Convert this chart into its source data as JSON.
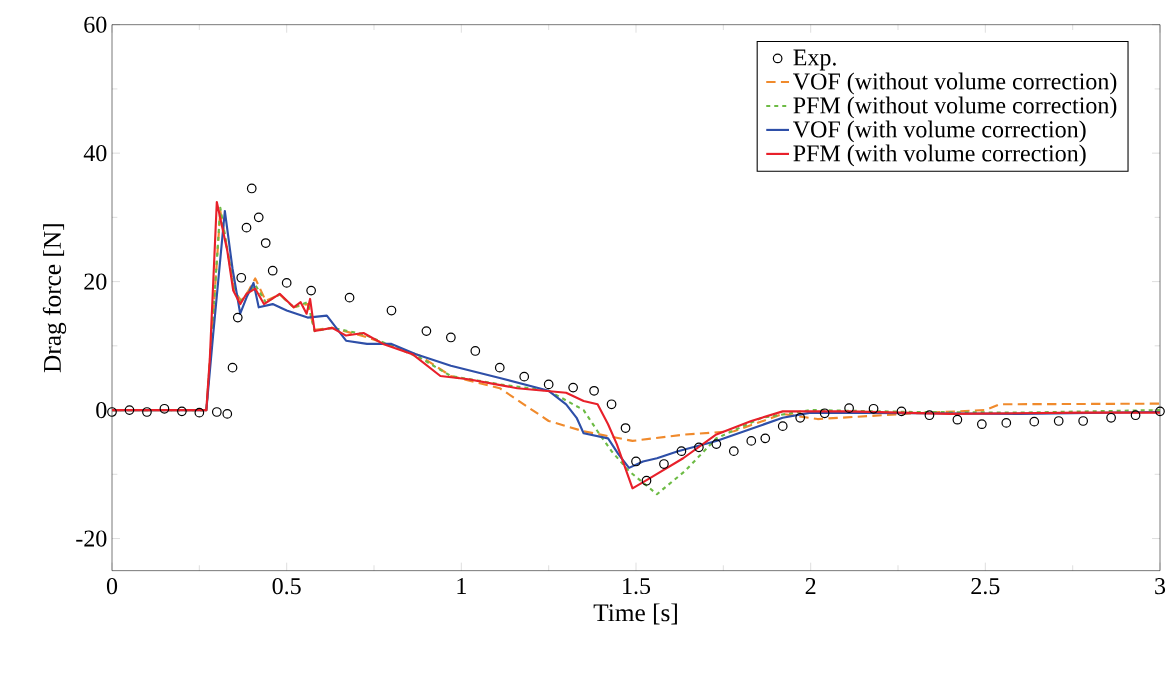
{
  "chart_data": {
    "type": "line",
    "xlabel": "Time [s]",
    "ylabel": "Drag force [N]",
    "xlim": [
      0,
      3
    ],
    "ylim": [
      -25,
      60
    ],
    "xticks": [
      0,
      0.5,
      1,
      1.5,
      2,
      2.5,
      3
    ],
    "yticks": [
      -20,
      0,
      20,
      40,
      60
    ],
    "legend": "top right",
    "series": [
      {
        "name": "Exp.",
        "type": "scatter",
        "marker": "circle",
        "color": "#000000",
        "x": [
          0,
          0.05,
          0.1,
          0.15,
          0.2,
          0.25,
          0.3,
          0.33,
          0.345,
          0.36,
          0.37,
          0.385,
          0.4,
          0.42,
          0.44,
          0.46,
          0.5,
          0.57,
          0.68,
          0.8,
          0.9,
          0.97,
          1.04,
          1.11,
          1.18,
          1.25,
          1.32,
          1.38,
          1.43,
          1.47,
          1.5,
          1.53,
          1.58,
          1.63,
          1.68,
          1.73,
          1.78,
          1.83,
          1.87,
          1.92,
          1.97,
          2.04,
          2.11,
          2.18,
          2.26,
          2.34,
          2.42,
          2.49,
          2.56,
          2.64,
          2.71,
          2.78,
          2.86,
          2.93,
          3.0
        ],
        "values": [
          -0.3,
          0,
          -0.3,
          0.2,
          -0.2,
          -0.4,
          -0.3,
          -0.6,
          6.6,
          14.4,
          20.6,
          28.4,
          34.5,
          30,
          26,
          21.7,
          19.8,
          18.6,
          17.5,
          15.5,
          12.3,
          11.3,
          9.2,
          6.6,
          5.2,
          4,
          3.5,
          3,
          0.9,
          -2.8,
          -8,
          -11,
          -8.4,
          -6.4,
          -5.8,
          -5.3,
          -6.4,
          -4.8,
          -4.4,
          -2.5,
          -1.2,
          -0.5,
          0.3,
          0.2,
          -0.2,
          -0.8,
          -1.5,
          -2.2,
          -2.0,
          -1.8,
          -1.7,
          -1.7,
          -1.2,
          -0.8,
          -0.2
        ]
      },
      {
        "name": "VOF (without volume correction)",
        "line_style": "dashed",
        "color": "#f08a2c",
        "x": [
          0,
          0.27,
          0.29,
          0.31,
          0.33,
          0.35,
          0.37,
          0.39,
          0.41,
          0.44,
          0.48,
          0.52,
          0.56,
          0.58,
          0.63,
          0.72,
          0.8,
          0.88,
          0.97,
          1.11,
          1.25,
          1.35,
          1.49,
          1.64,
          1.78,
          1.92,
          2.02,
          2.3,
          2.5,
          2.54,
          3.0
        ],
        "values": [
          0,
          0,
          15,
          31,
          25,
          18.6,
          17,
          18.5,
          20.5,
          17,
          18,
          16,
          16.5,
          12.5,
          12.8,
          11.5,
          10,
          8.5,
          5.3,
          3.4,
          -1.7,
          -3.3,
          -4.8,
          -3.8,
          -3.3,
          -0.6,
          -1.4,
          -0.5,
          0,
          0.9,
          1
        ]
      },
      {
        "name": "PFM (without volume correction)",
        "line_style": "dotted",
        "color": "#6dbb45",
        "x": [
          0,
          0.27,
          0.29,
          0.31,
          0.33,
          0.35,
          0.37,
          0.39,
          0.41,
          0.44,
          0.48,
          0.52,
          0.56,
          0.58,
          0.63,
          0.72,
          0.8,
          0.88,
          0.97,
          1.11,
          1.25,
          1.35,
          1.39,
          1.43,
          1.48,
          1.56,
          1.64,
          1.73,
          1.86,
          2.0,
          2.3,
          2.6,
          3.0
        ],
        "values": [
          0,
          0,
          15,
          31.5,
          25,
          18.6,
          17,
          18.3,
          19.5,
          16.8,
          18,
          16,
          16.8,
          12.3,
          12.8,
          11.8,
          10,
          8.2,
          5.3,
          4,
          3,
          0,
          -3.3,
          -6.4,
          -9.5,
          -13.1,
          -9.5,
          -4.4,
          -1.2,
          0,
          -0.3,
          -0.4,
          0
        ]
      },
      {
        "name": "VOF (with volume correction)",
        "line_style": "solid",
        "color": "#2e4fa8",
        "x": [
          0,
          0.27,
          0.29,
          0.323,
          0.345,
          0.367,
          0.385,
          0.405,
          0.42,
          0.46,
          0.5,
          0.56,
          0.615,
          0.67,
          0.73,
          0.8,
          0.87,
          0.97,
          1.11,
          1.25,
          1.3,
          1.33,
          1.35,
          1.42,
          1.45,
          1.48,
          1.52,
          1.56,
          1.62,
          1.73,
          1.92,
          2.0,
          2.3,
          2.6,
          3.0
        ],
        "values": [
          0,
          0,
          12,
          31,
          22,
          15,
          17.5,
          19.8,
          16,
          16.5,
          15.5,
          14.4,
          14.7,
          10.8,
          10.3,
          10.3,
          8.7,
          6.9,
          5,
          3,
          0.9,
          -1.2,
          -3.6,
          -4.4,
          -6.9,
          -9,
          -8,
          -7.5,
          -6.4,
          -4.8,
          -1.2,
          -0.4,
          -0.5,
          -0.6,
          -0.3
        ]
      },
      {
        "name": "PFM (with volume correction)",
        "line_style": "solid",
        "color": "#e8202a",
        "x": [
          0,
          0.27,
          0.28,
          0.3,
          0.33,
          0.347,
          0.367,
          0.385,
          0.41,
          0.435,
          0.48,
          0.52,
          0.54,
          0.557,
          0.567,
          0.58,
          0.63,
          0.67,
          0.72,
          0.776,
          0.86,
          0.94,
          1.02,
          1.1,
          1.16,
          1.3,
          1.35,
          1.39,
          1.42,
          1.445,
          1.49,
          1.54,
          1.635,
          1.73,
          1.83,
          1.92,
          2.11,
          2.4,
          2.78,
          3.0
        ],
        "values": [
          0,
          0,
          8,
          32.4,
          24.8,
          18.6,
          16.5,
          18.1,
          18.9,
          16.5,
          18.1,
          16,
          16.8,
          15,
          17.3,
          12.3,
          12.8,
          11.6,
          12,
          10.3,
          8.7,
          5.3,
          4.8,
          4,
          3.4,
          2.7,
          1.4,
          0.9,
          -2.2,
          -5.3,
          -12.2,
          -10.6,
          -7.5,
          -3.8,
          -1.7,
          -0.2,
          -0.2,
          -0.6,
          -0.4,
          -0.4
        ]
      }
    ]
  }
}
